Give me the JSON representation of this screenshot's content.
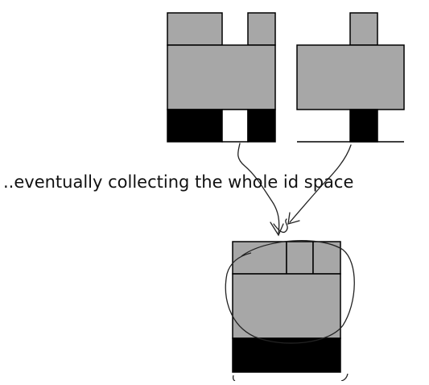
{
  "caption": "..eventually collecting the whole id space",
  "colors": {
    "block_fill": "#a7a7a7",
    "used_fill": "#000000",
    "outline": "#000000",
    "background": "#ffffff",
    "ink": "#222222"
  }
}
